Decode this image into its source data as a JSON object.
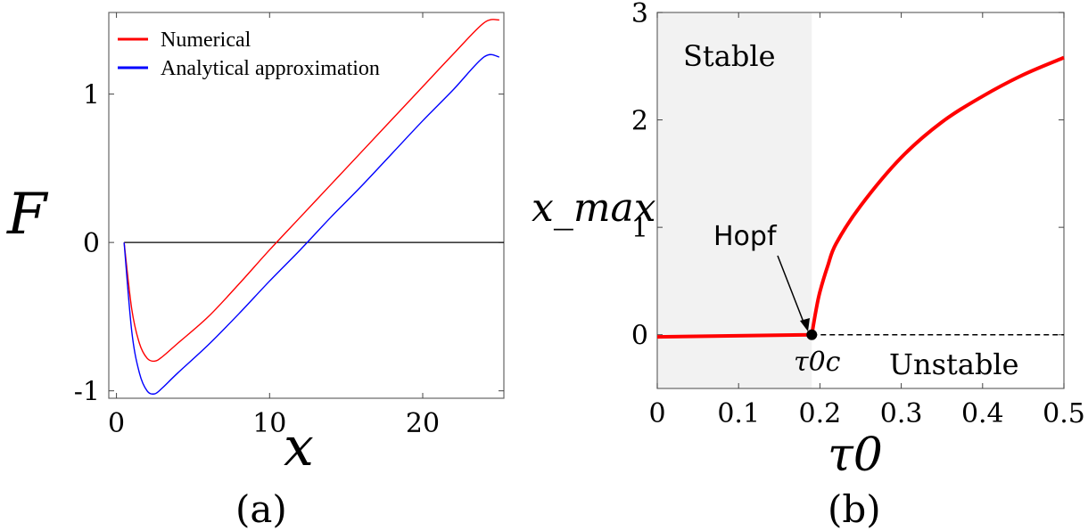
{
  "chart_data": [
    {
      "type": "line",
      "panel_label": "(a)",
      "xlabel": "x",
      "ylabel": "F",
      "xlim": [
        -0.5,
        25.3
      ],
      "ylim": [
        -1.05,
        1.55
      ],
      "x_ticks": [
        {
          "v": 0,
          "label": "0"
        },
        {
          "v": 10,
          "label": "10"
        },
        {
          "v": 20,
          "label": "20"
        }
      ],
      "y_ticks": [
        {
          "v": -1,
          "label": "-1"
        },
        {
          "v": 0,
          "label": "0"
        },
        {
          "v": 1,
          "label": "1"
        }
      ],
      "reference_line_y": 0,
      "legend_position": "top-left",
      "series": [
        {
          "name": "Numerical",
          "color": "#ff0000",
          "x": [
            0.5,
            1.0,
            1.5,
            2.0,
            2.5,
            3.0,
            4.0,
            6.0,
            8.0,
            10.0,
            12.0,
            14.0,
            16.0,
            18.0,
            20.0,
            22.0,
            24.0,
            25.0
          ],
          "y": [
            0.0,
            -0.45,
            -0.68,
            -0.78,
            -0.8,
            -0.77,
            -0.68,
            -0.5,
            -0.28,
            -0.05,
            0.17,
            0.39,
            0.61,
            0.83,
            1.05,
            1.27,
            1.48,
            1.5
          ]
        },
        {
          "name": "Analytical approximation",
          "color": "#0000ff",
          "x": [
            0.5,
            1.0,
            1.5,
            2.0,
            2.5,
            3.0,
            4.0,
            6.0,
            8.0,
            10.0,
            12.0,
            14.0,
            16.0,
            18.0,
            20.0,
            22.0,
            24.0,
            25.0
          ],
          "y": [
            0.0,
            -0.6,
            -0.88,
            -1.0,
            -1.02,
            -0.98,
            -0.88,
            -0.69,
            -0.48,
            -0.26,
            -0.05,
            0.17,
            0.38,
            0.6,
            0.82,
            1.03,
            1.25,
            1.25
          ]
        }
      ]
    },
    {
      "type": "line",
      "panel_label": "(b)",
      "xlabel": "τ0",
      "ylabel": "x_max",
      "xlim": [
        0,
        0.5
      ],
      "ylim": [
        -0.5,
        3
      ],
      "x_ticks": [
        {
          "v": 0,
          "label": "0"
        },
        {
          "v": 0.1,
          "label": "0.1"
        },
        {
          "v": 0.2,
          "label": "0.2"
        },
        {
          "v": 0.3,
          "label": "0.3"
        },
        {
          "v": 0.4,
          "label": "0.4"
        },
        {
          "v": 0.5,
          "label": "0.5"
        }
      ],
      "y_ticks": [
        {
          "v": 0,
          "label": "0"
        },
        {
          "v": 1,
          "label": "1"
        },
        {
          "v": 2,
          "label": "2"
        },
        {
          "v": 3,
          "label": "3"
        }
      ],
      "stable_region_xmax": 0.19,
      "region_labels": {
        "stable": "Stable",
        "unstable": "Unstable"
      },
      "hopf_point": {
        "x": 0.19,
        "y": 0.0,
        "label": "Hopf",
        "point_label": "τ0c"
      },
      "series": [
        {
          "name": "",
          "style": "solid",
          "color": "#ff0000",
          "x": [
            0.0,
            0.19,
            0.195,
            0.2,
            0.21,
            0.22,
            0.25,
            0.3,
            0.35,
            0.4,
            0.45,
            0.5
          ],
          "y": [
            -0.02,
            0.0,
            0.22,
            0.4,
            0.65,
            0.85,
            1.2,
            1.65,
            1.98,
            2.22,
            2.42,
            2.58
          ]
        },
        {
          "name": "",
          "style": "dashed",
          "color": "#000000",
          "x": [
            0.19,
            0.5
          ],
          "y": [
            0.0,
            0.0
          ]
        }
      ]
    }
  ]
}
